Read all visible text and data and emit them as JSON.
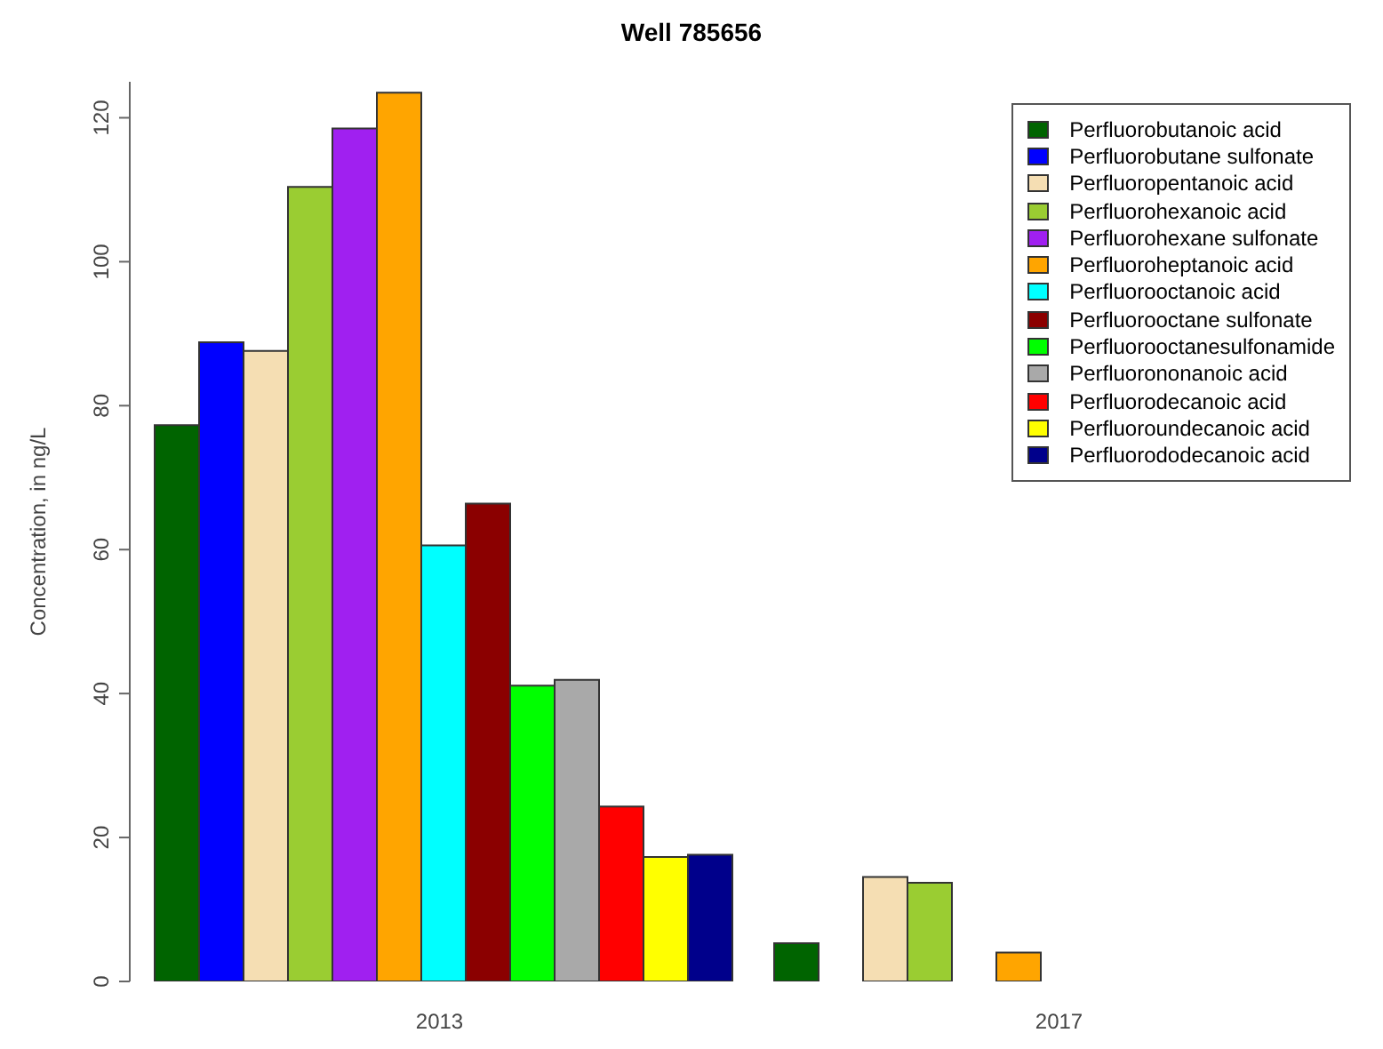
{
  "chart_data": {
    "type": "bar",
    "title": "Well 785656",
    "ylabel": "Concentration, in ng/L",
    "categories": [
      "2013",
      "2017"
    ],
    "series": [
      {
        "name": "Perfluorobutanoic acid",
        "color": "#006400",
        "values": [
          77.3,
          5.3
        ]
      },
      {
        "name": "Perfluorobutane sulfonate",
        "color": "#0000ff",
        "values": [
          88.8,
          0
        ]
      },
      {
        "name": "Perfluoropentanoic acid",
        "color": "#f5deb3",
        "values": [
          87.6,
          14.5
        ]
      },
      {
        "name": "Perfluorohexanoic acid",
        "color": "#9acd32",
        "values": [
          110.4,
          13.7
        ]
      },
      {
        "name": "Perfluorohexane sulfonate",
        "color": "#a020f0",
        "values": [
          118.5,
          0
        ]
      },
      {
        "name": "Perfluoroheptanoic acid",
        "color": "#ffa500",
        "values": [
          123.5,
          4.0
        ]
      },
      {
        "name": "Perfluorooctanoic acid",
        "color": "#00ffff",
        "values": [
          60.6,
          0
        ]
      },
      {
        "name": "Perfluorooctane sulfonate",
        "color": "#8b0000",
        "values": [
          66.4,
          0
        ]
      },
      {
        "name": "Perfluorooctanesulfonamide",
        "color": "#00ff00",
        "values": [
          41.1,
          0
        ]
      },
      {
        "name": "Perfluorononanoic acid",
        "color": "#a9a9a9",
        "values": [
          41.9,
          0
        ]
      },
      {
        "name": "Perfluorodecanoic acid",
        "color": "#ff0000",
        "values": [
          24.3,
          0
        ]
      },
      {
        "name": "Perfluoroundecanoic acid",
        "color": "#ffff00",
        "values": [
          17.3,
          0
        ]
      },
      {
        "name": "Perfluorododecanoic acid",
        "color": "#00008b",
        "values": [
          17.6,
          0
        ]
      }
    ],
    "ylim": [
      0,
      125
    ],
    "yticks": [
      0,
      20,
      40,
      60,
      80,
      100,
      120
    ],
    "grid": false,
    "legend": "top right"
  }
}
